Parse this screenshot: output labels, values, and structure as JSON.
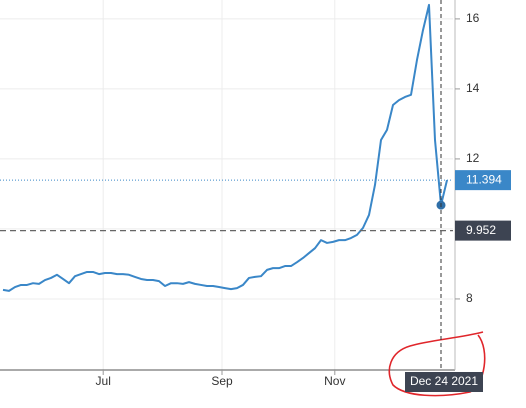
{
  "chart_data": {
    "type": "line",
    "xlim": [
      0,
      75.5
    ],
    "xticks": [
      {
        "value": 17.2,
        "label": "Jul"
      },
      {
        "value": 37,
        "label": "Sep"
      },
      {
        "value": 55.8,
        "label": "Nov"
      }
    ],
    "ylim": [
      5.97,
      16.54
    ],
    "yticks": [
      8,
      10,
      12,
      14,
      16
    ],
    "grid": true,
    "series": [
      {
        "color": "#3a87c8",
        "values": [
          8.26,
          8.23,
          8.34,
          8.4,
          8.4,
          8.45,
          8.43,
          8.54,
          8.6,
          8.69,
          8.57,
          8.45,
          8.65,
          8.71,
          8.77,
          8.77,
          8.71,
          8.74,
          8.74,
          8.71,
          8.71,
          8.69,
          8.63,
          8.57,
          8.54,
          8.54,
          8.51,
          8.37,
          8.45,
          8.45,
          8.43,
          8.48,
          8.43,
          8.4,
          8.37,
          8.37,
          8.34,
          8.31,
          8.28,
          8.31,
          8.4,
          8.6,
          8.63,
          8.65,
          8.83,
          8.88,
          8.88,
          8.94,
          8.94,
          9.05,
          9.17,
          9.31,
          9.45,
          9.68,
          9.6,
          9.63,
          9.68,
          9.68,
          9.74,
          9.83,
          10.03,
          10.4,
          11.26,
          12.54,
          12.83,
          13.54,
          13.68,
          13.77,
          13.83,
          14.83,
          15.68,
          16.4,
          12.54,
          10.68,
          11.394
        ]
      }
    ],
    "last_value": 11.394,
    "reference_line": 9.952,
    "crosshair_label": "Dec 24 2021"
  }
}
